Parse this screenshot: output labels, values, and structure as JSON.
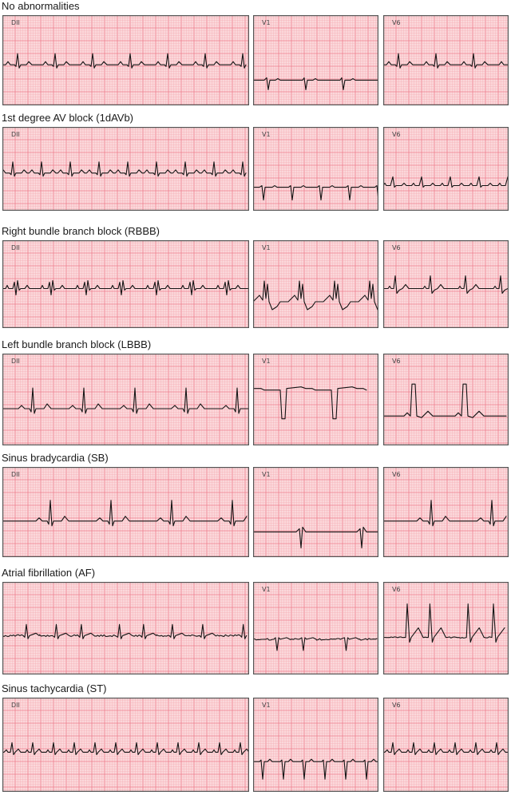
{
  "colors": {
    "paper": "#fbd8db",
    "grid_minor": "#f5aab3",
    "grid_major": "#ee7e8c",
    "trace": "#151515"
  },
  "rows": [
    {
      "title": "No abnormalities",
      "rhythm": "normal",
      "leads": [
        {
          "label": "DII",
          "morph": "normal"
        },
        {
          "label": "V1",
          "morph": "neg"
        },
        {
          "label": "V6",
          "morph": "normal"
        }
      ]
    },
    {
      "title": "1st degree AV block (1dAVb)",
      "rhythm": "avblock",
      "leads": [
        {
          "label": "DII",
          "morph": "normal"
        },
        {
          "label": "V1",
          "morph": "deepneg"
        },
        {
          "label": "V6",
          "morph": "small"
        }
      ]
    },
    {
      "title": "Right bundle branch block (RBBB)",
      "rhythm": "rbbb",
      "leads": [
        {
          "label": "DII",
          "morph": "rbbb"
        },
        {
          "label": "V1",
          "morph": "rsr"
        },
        {
          "label": "V6",
          "morph": "rbbb6"
        }
      ]
    },
    {
      "title": "Left bundle branch block (LBBB)",
      "rhythm": "lbbb",
      "leads": [
        {
          "label": "DII",
          "morph": "tall"
        },
        {
          "label": "V1",
          "morph": "lbbbv1"
        },
        {
          "label": "V6",
          "morph": "lbbbv6"
        }
      ]
    },
    {
      "title": "Sinus bradycardia (SB)",
      "rhythm": "brady",
      "leads": [
        {
          "label": "DII",
          "morph": "tall"
        },
        {
          "label": "V1",
          "morph": "bradyv1"
        },
        {
          "label": "V6",
          "morph": "tall"
        }
      ]
    },
    {
      "title": "Atrial fibrillation (AF)",
      "rhythm": "af",
      "leads": [
        {
          "label": "",
          "morph": "af"
        },
        {
          "label": "V1",
          "morph": "afv1"
        },
        {
          "label": "V6",
          "morph": "afv6"
        }
      ]
    },
    {
      "title": "Sinus tachycardia (ST)",
      "rhythm": "tachy",
      "leads": [
        {
          "label": "DII",
          "morph": "tachy"
        },
        {
          "label": "V1",
          "morph": "tachyv1"
        },
        {
          "label": "V6",
          "morph": "tachy"
        }
      ]
    }
  ]
}
